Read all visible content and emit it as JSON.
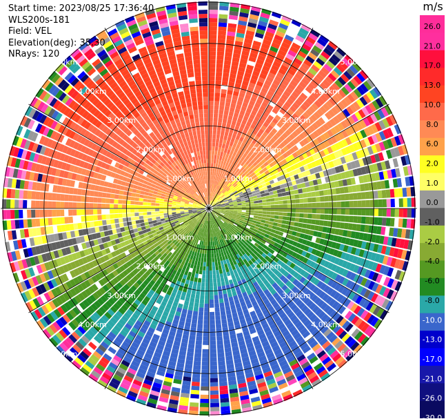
{
  "info": {
    "start_time": "Start time: 2023/08/25 17:36:40",
    "station": "WLS200s-181",
    "field": "Field: VEL",
    "elevation": "Elevation(deg): 35.30",
    "nrays": "NRays: 120"
  },
  "colorbar": {
    "unit": "m/s",
    "ticks": [
      "26.0",
      "21.0",
      "17.0",
      "13.0",
      "10.0",
      "8.0",
      "6.0",
      "2.0",
      "1.0",
      "0.0",
      "-1.0",
      "-2.0",
      "-4.0",
      "-6.0",
      "-8.0",
      "-10.0",
      "-13.0",
      "-17.0",
      "-21.0",
      "-26.0",
      "-30.0"
    ],
    "colors": [
      "#ff2d9a",
      "#ff2f9e",
      "#ff0f3d",
      "#ff2a2a",
      "#ff4422",
      "#ff6a4a",
      "#ff8a55",
      "#ffa24a",
      "#ffff22",
      "#ffff66",
      "#999999",
      "#606060",
      "#aacc44",
      "#88aa33",
      "#559922",
      "#228b22",
      "#2aa8a8",
      "#3a66cc",
      "#0000cc",
      "#0000ff",
      "#1818aa",
      "#101080",
      "#0a0a60"
    ]
  },
  "chart_data": {
    "type": "ppi",
    "field": "VEL",
    "units": "m/s",
    "nrays": 120,
    "elevation_deg": 35.3,
    "range_ring_labels": [
      "1.00km",
      "2.00km",
      "3.00km",
      "4.00km",
      "5.00km"
    ],
    "range_rings_km": [
      1,
      2,
      3,
      4,
      5
    ],
    "max_range_km": 5,
    "spoke_azimuths_deg": [
      0,
      30,
      60,
      90,
      120,
      150,
      180,
      210,
      240,
      270,
      300,
      330
    ],
    "label_azimuths_deg": [
      45,
      135,
      225,
      315
    ],
    "velocity_pattern": "near-zero band oriented NE-SW, positive (toward yellow/orange) to the north, negative (green to blue) to the south, noisy random colors beyond ~4.5 km"
  }
}
